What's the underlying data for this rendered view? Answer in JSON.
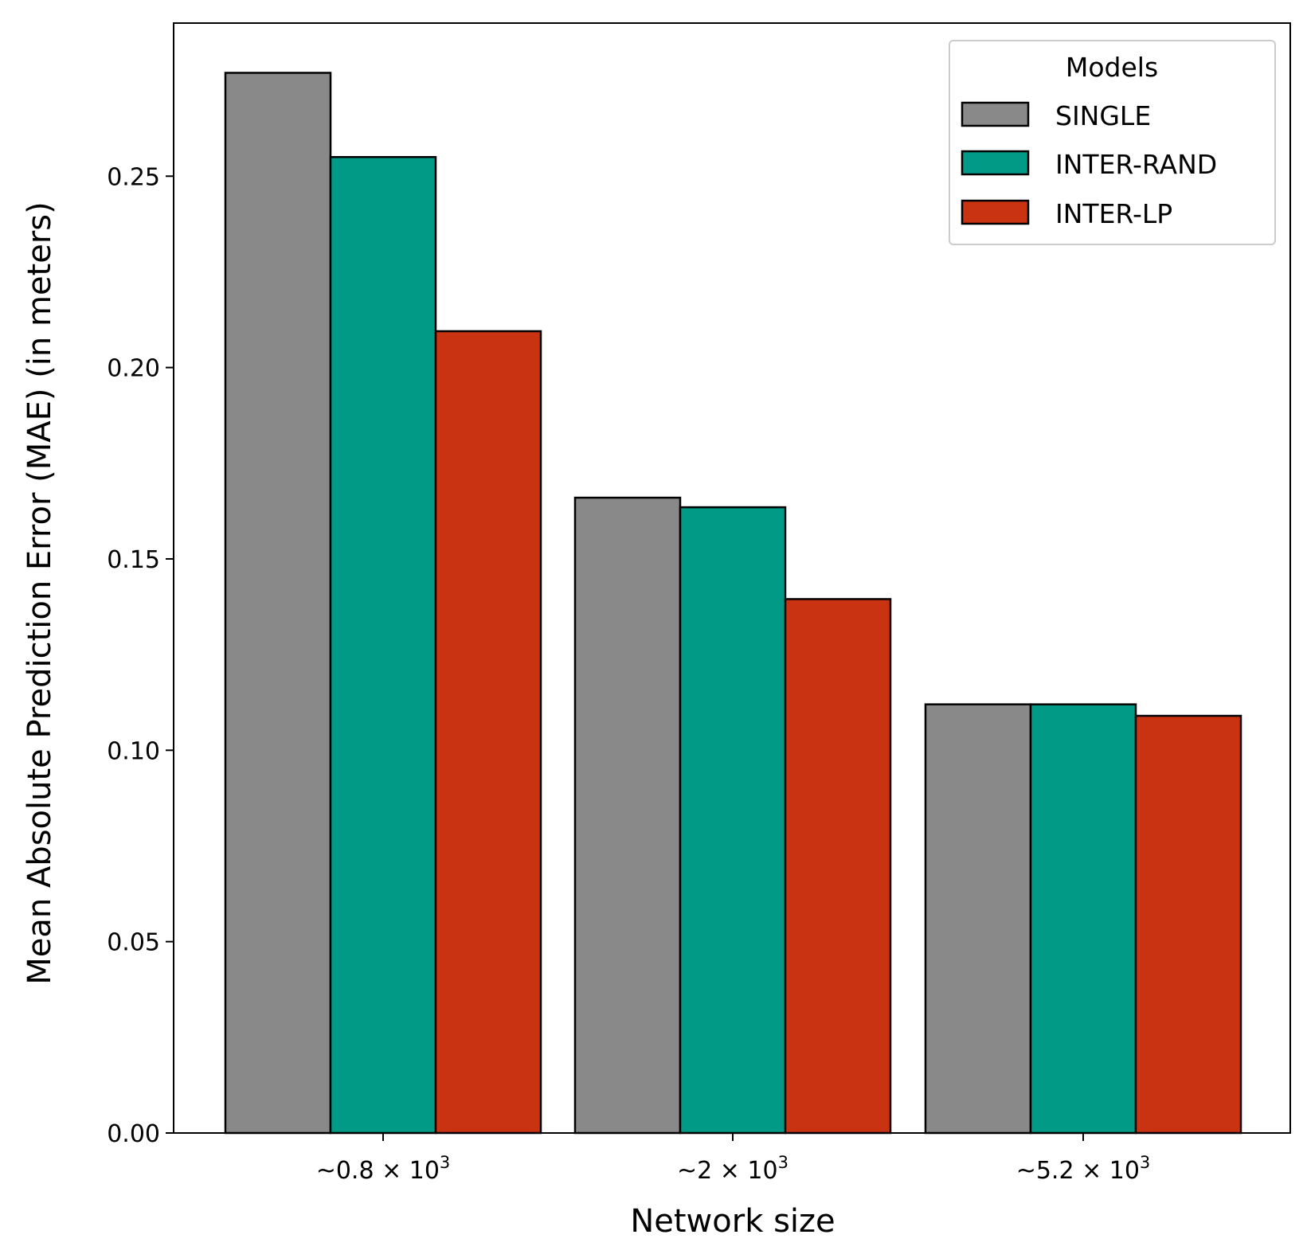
{
  "chart_data": {
    "type": "bar",
    "title": "",
    "xlabel": "Network size",
    "ylabel": "Mean Absolute Prediction Error (MAE) (in meters)",
    "categories": [
      {
        "prefix": "~",
        "mantissa": "0.8",
        "times": "×",
        "base": "10",
        "exp": "3"
      },
      {
        "prefix": "~",
        "mantissa": "2",
        "times": "×",
        "base": "10",
        "exp": "3"
      },
      {
        "prefix": "~",
        "mantissa": "5.2",
        "times": "×",
        "base": "10",
        "exp": "3"
      }
    ],
    "series": [
      {
        "name": "SINGLE",
        "color": "#898989",
        "values": [
          0.277,
          0.166,
          0.112
        ]
      },
      {
        "name": "INTER-RAND",
        "color": "#009a87",
        "values": [
          0.255,
          0.1635,
          0.112
        ]
      },
      {
        "name": "INTER-LP",
        "color": "#c93312",
        "values": [
          0.2095,
          0.1395,
          0.109
        ]
      }
    ],
    "ylim": [
      0,
      0.29
    ],
    "yticks": [
      "0.00",
      "0.05",
      "0.10",
      "0.15",
      "0.20",
      "0.25"
    ],
    "legend": {
      "title": "Models",
      "position": "top-right"
    },
    "grid": false
  }
}
